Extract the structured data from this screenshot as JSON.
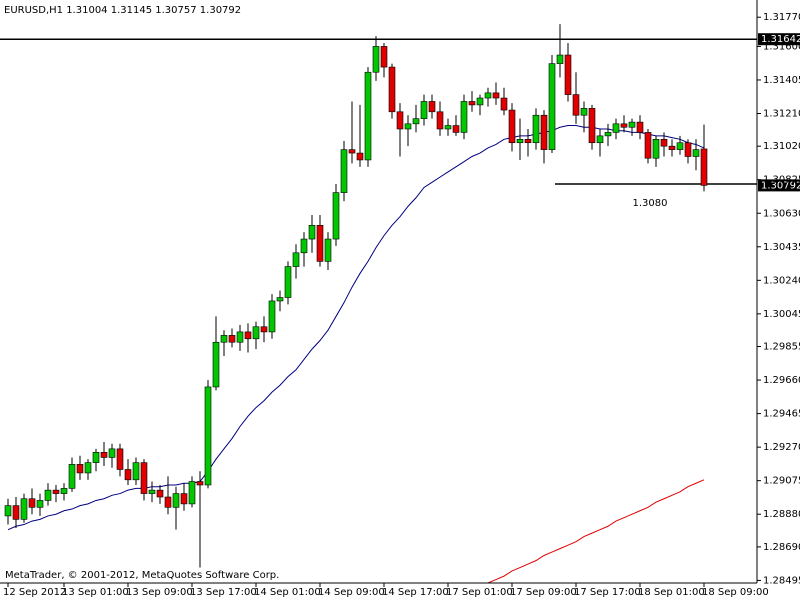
{
  "chart_data": {
    "type": "candlestick",
    "title": "EURUSD,H1  1.31004 1.31145 1.30757 1.30792",
    "footer": "MetaTrader, © 2001-2012, MetaQuotes Software Corp.",
    "categories": [
      "12 Sep 2012",
      null,
      null,
      null,
      null,
      null,
      null,
      "13 Sep 01:00",
      null,
      null,
      null,
      null,
      null,
      null,
      null,
      "13 Sep 09:00",
      null,
      null,
      null,
      null,
      null,
      null,
      null,
      "13 Sep 17:00",
      null,
      null,
      null,
      null,
      null,
      null,
      null,
      "14 Sep 01:00",
      null,
      null,
      null,
      null,
      null,
      null,
      null,
      "14 Sep 09:00",
      null,
      null,
      null,
      null,
      null,
      null,
      null,
      "14 Sep 17:00",
      null,
      null,
      null,
      null,
      null,
      null,
      null,
      "17 Sep 01:00",
      null,
      null,
      null,
      null,
      null,
      null,
      null,
      "17 Sep 09:00",
      null,
      null,
      null,
      null,
      null,
      null,
      null,
      "17 Sep 17:00",
      null,
      null,
      null,
      null,
      null,
      null,
      null,
      "18 Sep 01:00",
      null,
      null,
      null,
      null,
      null,
      null,
      null,
      "18 Sep 09:00"
    ],
    "open": [
      1.2887,
      1.2893,
      1.2885,
      1.2897,
      1.2892,
      1.2896,
      1.2902,
      1.29,
      1.2903,
      1.2917,
      1.2912,
      1.2918,
      1.2924,
      1.2921,
      1.2926,
      1.2914,
      1.2908,
      1.2918,
      1.29,
      1.2902,
      1.2898,
      1.2892,
      1.29,
      1.2894,
      1.2907,
      1.2905,
      1.2962,
      1.2988,
      1.2992,
      1.2988,
      1.2994,
      1.299,
      1.2997,
      1.2994,
      1.3012,
      1.3014,
      1.3032,
      1.304,
      1.3048,
      1.3056,
      1.3035,
      1.3048,
      1.3075,
      1.31,
      1.3098,
      1.3094,
      1.3145,
      1.316,
      1.3148,
      1.3122,
      1.3112,
      1.3115,
      1.3118,
      1.3128,
      1.3122,
      1.3112,
      1.3114,
      1.311,
      1.3128,
      1.3126,
      1.313,
      1.3133,
      1.313,
      1.3123,
      1.3104,
      1.3106,
      1.3104,
      1.312,
      1.31,
      1.315,
      1.3155,
      1.3132,
      1.312,
      1.3124,
      1.3104,
      1.3108,
      1.311,
      1.3115,
      1.3113,
      1.3116,
      1.311,
      1.3095,
      1.3106,
      1.3102,
      1.31,
      1.3104,
      1.3096,
      1.31004
    ],
    "high": [
      1.2897,
      1.2898,
      1.29,
      1.2903,
      1.29,
      1.2906,
      1.2905,
      1.2906,
      1.2921,
      1.2922,
      1.292,
      1.2926,
      1.293,
      1.2929,
      1.2929,
      1.292,
      1.2921,
      1.292,
      1.2907,
      1.2905,
      1.291,
      1.2904,
      1.2906,
      1.291,
      1.2913,
      1.2966,
      1.3003,
      1.2995,
      1.2996,
      1.2998,
      1.2999,
      1.3,
      1.3003,
      1.3016,
      1.3018,
      1.3035,
      1.3045,
      1.3052,
      1.3062,
      1.3062,
      1.3052,
      1.308,
      1.3105,
      1.3128,
      1.3126,
      1.3148,
      1.3166,
      1.3162,
      1.315,
      1.3127,
      1.312,
      1.3126,
      1.3132,
      1.3132,
      1.3128,
      1.3118,
      1.312,
      1.3132,
      1.3134,
      1.3132,
      1.3136,
      1.3139,
      1.3136,
      1.3127,
      1.3118,
      1.3112,
      1.3124,
      1.3123,
      1.3155,
      1.3173,
      1.3162,
      1.3145,
      1.3128,
      1.3126,
      1.3112,
      1.3115,
      1.3118,
      1.312,
      1.3118,
      1.312,
      1.3112,
      1.3108,
      1.311,
      1.3106,
      1.3108,
      1.3106,
      1.3106,
      1.31145
    ],
    "low": [
      1.2882,
      1.288,
      1.2883,
      1.2888,
      1.2887,
      1.2893,
      1.2895,
      1.2896,
      1.2901,
      1.2908,
      1.2908,
      1.2913,
      1.2916,
      1.2915,
      1.291,
      1.2905,
      1.2905,
      1.2896,
      1.2895,
      1.2894,
      1.2888,
      1.2879,
      1.289,
      1.2892,
      1.2857,
      1.2903,
      1.296,
      1.298,
      1.2985,
      1.2983,
      1.2982,
      1.2984,
      1.2988,
      1.299,
      1.3006,
      1.301,
      1.3025,
      1.3032,
      1.304,
      1.3032,
      1.303,
      1.3044,
      1.307,
      1.3092,
      1.309,
      1.309,
      1.314,
      1.3142,
      1.3118,
      1.3096,
      1.3102,
      1.311,
      1.3114,
      1.3118,
      1.3108,
      1.3108,
      1.3108,
      1.3106,
      1.3122,
      1.312,
      1.3125,
      1.3126,
      1.312,
      1.3099,
      1.3094,
      1.3096,
      1.31,
      1.3092,
      1.3098,
      1.3142,
      1.3128,
      1.3115,
      1.311,
      1.31,
      1.3096,
      1.3102,
      1.3106,
      1.311,
      1.3108,
      1.3106,
      1.3092,
      1.309,
      1.3096,
      1.3096,
      1.3097,
      1.3092,
      1.3088,
      1.30757
    ],
    "close": [
      1.2893,
      1.2885,
      1.2897,
      1.2892,
      1.2896,
      1.2902,
      1.29,
      1.2903,
      1.2917,
      1.2912,
      1.2918,
      1.2924,
      1.2921,
      1.2926,
      1.2914,
      1.2908,
      1.2918,
      1.29,
      1.2902,
      1.2898,
      1.2892,
      1.29,
      1.2894,
      1.2907,
      1.2905,
      1.2962,
      1.2988,
      1.2992,
      1.2988,
      1.2994,
      1.299,
      1.2997,
      1.2994,
      1.3012,
      1.3014,
      1.3032,
      1.304,
      1.3048,
      1.3056,
      1.3035,
      1.3048,
      1.3075,
      1.31,
      1.3098,
      1.3094,
      1.3145,
      1.316,
      1.3148,
      1.3122,
      1.3112,
      1.3115,
      1.3118,
      1.3128,
      1.3122,
      1.3112,
      1.3114,
      1.311,
      1.3128,
      1.3126,
      1.313,
      1.3133,
      1.313,
      1.3123,
      1.3104,
      1.3106,
      1.3104,
      1.312,
      1.31,
      1.315,
      1.3155,
      1.3132,
      1.312,
      1.3124,
      1.3104,
      1.3108,
      1.311,
      1.3115,
      1.3113,
      1.3116,
      1.311,
      1.3095,
      1.3106,
      1.3102,
      1.31,
      1.3104,
      1.3096,
      1.31,
      1.30792
    ],
    "up_color": "#00c800",
    "down_color": "#e00000",
    "lines": [
      {
        "color": "#000080",
        "values": [
          1.2879,
          1.2881,
          1.2882,
          1.2884,
          1.2885,
          1.2887,
          1.2888,
          1.289,
          1.2891,
          1.2893,
          1.2894,
          1.2896,
          1.2897,
          1.2899,
          1.29,
          1.2902,
          1.2903,
          1.2903,
          1.2904,
          1.2904,
          1.2905,
          1.2905,
          1.2906,
          1.2906,
          1.2907,
          1.2913,
          1.292,
          1.2926,
          1.2932,
          1.2939,
          1.2945,
          1.295,
          1.2954,
          1.2959,
          1.2963,
          1.2968,
          1.2972,
          1.2978,
          1.2984,
          1.2989,
          1.2995,
          1.3003,
          1.3011,
          1.302,
          1.3028,
          1.3035,
          1.3043,
          1.305,
          1.3056,
          1.3061,
          1.3067,
          1.3072,
          1.3078,
          1.3081,
          1.3084,
          1.3087,
          1.309,
          1.3093,
          1.3096,
          1.3098,
          1.3101,
          1.3103,
          1.3106,
          1.3107,
          1.3108,
          1.3108,
          1.3109,
          1.311,
          1.3111,
          1.3113,
          1.3114,
          1.3114,
          1.3113,
          1.3113,
          1.3112,
          1.3112,
          1.3111,
          1.3111,
          1.311,
          1.311,
          1.3109,
          1.3108,
          1.3108,
          1.3107,
          1.3106,
          1.3104,
          1.3103,
          1.3101
        ]
      },
      {
        "color": "#e00000",
        "values": [
          null,
          null,
          null,
          null,
          null,
          null,
          null,
          null,
          null,
          null,
          null,
          null,
          null,
          null,
          null,
          null,
          null,
          null,
          null,
          null,
          null,
          null,
          null,
          null,
          null,
          null,
          null,
          null,
          null,
          null,
          null,
          null,
          null,
          null,
          null,
          null,
          null,
          null,
          null,
          null,
          null,
          null,
          null,
          null,
          null,
          null,
          null,
          null,
          null,
          null,
          null,
          null,
          null,
          null,
          null,
          null,
          null,
          null,
          null,
          null,
          1.2848,
          1.285,
          1.2852,
          1.2855,
          1.2857,
          1.2859,
          1.2861,
          1.2864,
          1.2866,
          1.2868,
          1.287,
          1.2872,
          1.2875,
          1.2877,
          1.2879,
          1.2881,
          1.2884,
          1.2886,
          1.2888,
          1.289,
          1.2892,
          1.2895,
          1.2897,
          1.2899,
          1.2901,
          1.2904,
          1.2906,
          1.2908
        ]
      }
    ],
    "level": 1.31642,
    "trend_line": {
      "value": 1.308,
      "label": "1.3080"
    },
    "last_price": 1.30792,
    "ylim": [
      1.2848,
      1.3187
    ],
    "yticks": [
      {
        "value": 1.3177,
        "label": "1.31770"
      },
      {
        "value": 1.316,
        "label": "1.31600"
      },
      1.31405,
      {
        "value": 1.3121,
        "label": "1.31210"
      },
      {
        "value": 1.3102,
        "label": "1.31020"
      },
      1.30825,
      {
        "value": 1.3063,
        "label": "1.30630"
      },
      1.30435,
      {
        "value": 1.3024,
        "label": "1.30240"
      },
      1.30045,
      1.29855,
      {
        "value": 1.2966,
        "label": "1.29660"
      },
      1.29465,
      {
        "value": 1.2927,
        "label": "1.29270"
      },
      1.29075,
      {
        "value": 1.2888,
        "label": "1.28880"
      },
      {
        "value": 1.2869,
        "label": "1.28690"
      },
      1.28495
    ]
  }
}
